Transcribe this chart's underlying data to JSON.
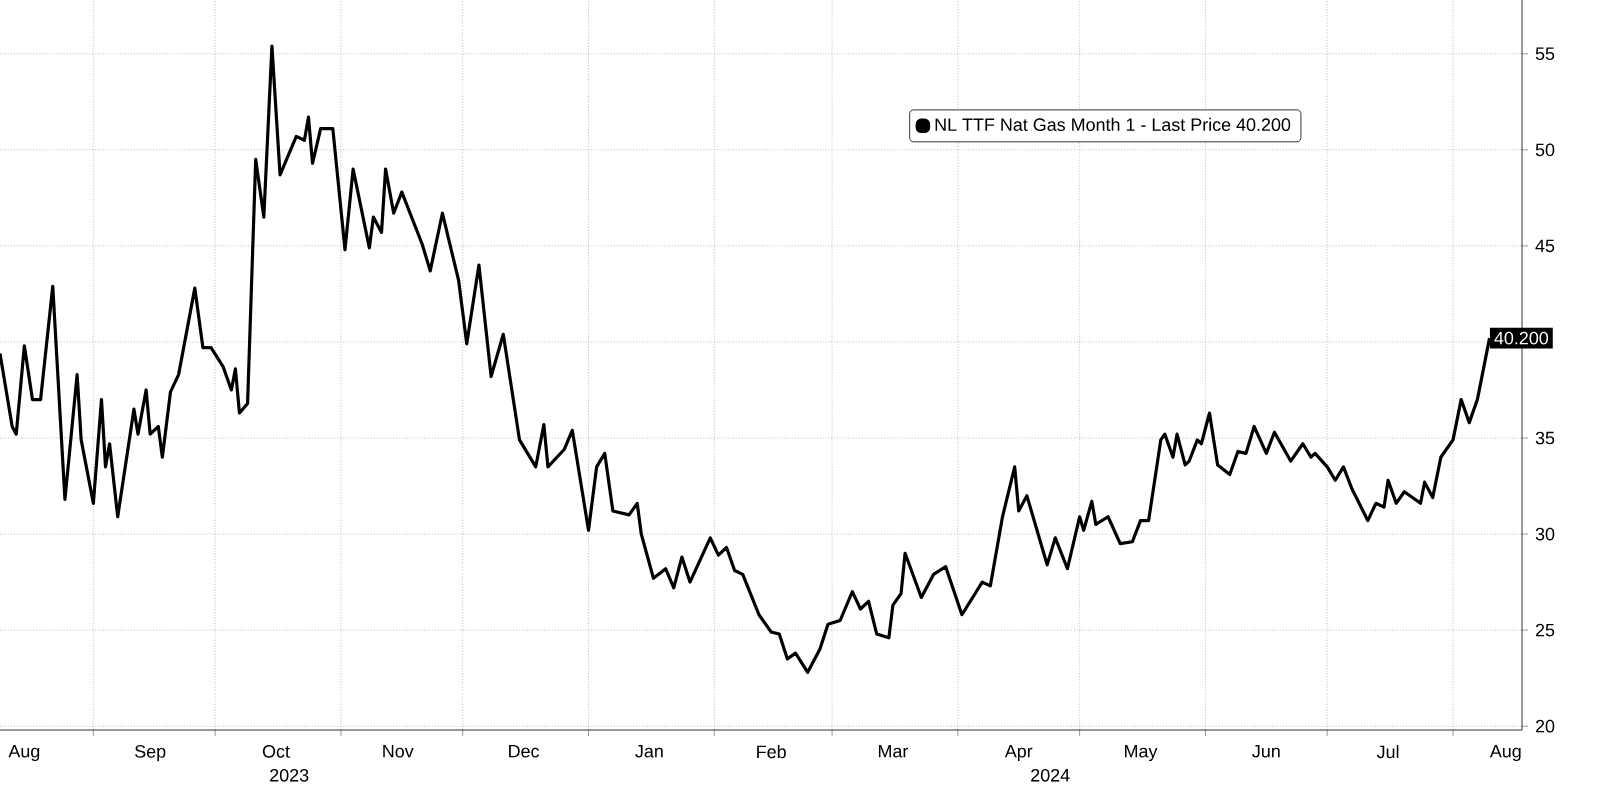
{
  "chart_data": {
    "type": "line",
    "xlim": [
      "2023-08-09",
      "2024-08-18"
    ],
    "ylim": [
      19.8,
      57.8
    ],
    "yticks": [
      20,
      25,
      30,
      35,
      {
        "value": 40,
        "label": null
      },
      45,
      50,
      55
    ],
    "xticks": [
      {
        "value": "2023-08-15",
        "label": "Aug"
      },
      {
        "value": "2023-09-01",
        "label": null
      },
      {
        "value": "2023-09-15",
        "label": "Sep"
      },
      {
        "value": "2023-10-01",
        "label": null
      },
      {
        "value": "2023-10-16",
        "label": "Oct"
      },
      {
        "value": "2023-11-01",
        "label": null
      },
      {
        "value": "2023-11-15",
        "label": "Nov"
      },
      {
        "value": "2023-12-01",
        "label": null
      },
      {
        "value": "2023-12-16",
        "label": "Dec"
      },
      {
        "value": "2024-01-01",
        "label": null
      },
      {
        "value": "2024-01-16",
        "label": "Jan"
      },
      {
        "value": "2024-02-01",
        "label": null
      },
      {
        "value": "2024-02-15",
        "label": "Feb"
      },
      {
        "value": "2024-03-01",
        "label": null
      },
      {
        "value": "2024-03-16",
        "label": "Mar"
      },
      {
        "value": "2024-04-01",
        "label": null
      },
      {
        "value": "2024-04-16",
        "label": "Apr"
      },
      {
        "value": "2024-05-01",
        "label": null
      },
      {
        "value": "2024-05-16",
        "label": "May"
      },
      {
        "value": "2024-06-01",
        "label": null
      },
      {
        "value": "2024-06-16",
        "label": "Jun"
      },
      {
        "value": "2024-07-01",
        "label": null
      },
      {
        "value": "2024-07-16",
        "label": "Jul"
      },
      {
        "value": "2024-08-01",
        "label": null
      },
      {
        "value": "2024-08-14",
        "label": "Aug"
      }
    ],
    "grid": true,
    "legend": "top right",
    "marker": "none",
    "line_style": "solid",
    "annotations": [
      "2023",
      "2024"
    ],
    "series": [
      {
        "name": "NL TTF Nat Gas Month 1 - Last Price 40.200",
        "color": "#000000",
        "x": [
          "2023-08-09",
          "2023-08-12",
          "2023-08-13",
          "2023-08-15",
          "2023-08-17",
          "2023-08-19",
          "2023-08-22",
          "2023-08-25",
          "2023-08-28",
          "2023-08-29",
          "2023-09-01",
          "2023-09-03",
          "2023-09-04",
          "2023-09-05",
          "2023-09-07",
          "2023-09-11",
          "2023-09-12",
          "2023-09-14",
          "2023-09-15",
          "2023-09-17",
          "2023-09-18",
          "2023-09-20",
          "2023-09-22",
          "2023-09-26",
          "2023-09-28",
          "2023-09-30",
          "2023-10-03",
          "2023-10-05",
          "2023-10-06",
          "2023-10-07",
          "2023-10-09",
          "2023-10-11",
          "2023-10-13",
          "2023-10-15",
          "2023-10-17",
          "2023-10-21",
          "2023-10-23",
          "2023-10-24",
          "2023-10-25",
          "2023-10-27",
          "2023-10-30",
          "2023-11-02",
          "2023-11-04",
          "2023-11-08",
          "2023-11-09",
          "2023-11-11",
          "2023-11-12",
          "2023-11-14",
          "2023-11-16",
          "2023-11-21",
          "2023-11-23",
          "2023-11-26",
          "2023-11-30",
          "2023-12-02",
          "2023-12-05",
          "2023-12-08",
          "2023-12-11",
          "2023-12-15",
          "2023-12-19",
          "2023-12-21",
          "2023-12-22",
          "2023-12-26",
          "2023-12-28",
          "2024-01-01",
          "2024-01-03",
          "2024-01-05",
          "2024-01-07",
          "2024-01-11",
          "2024-01-13",
          "2024-01-14",
          "2024-01-17",
          "2024-01-20",
          "2024-01-22",
          "2024-01-24",
          "2024-01-26",
          "2024-01-31",
          "2024-02-02",
          "2024-02-04",
          "2024-02-06",
          "2024-02-08",
          "2024-02-12",
          "2024-02-15",
          "2024-02-17",
          "2024-02-19",
          "2024-02-21",
          "2024-02-24",
          "2024-02-27",
          "2024-02-29",
          "2024-03-03",
          "2024-03-06",
          "2024-03-08",
          "2024-03-10",
          "2024-03-12",
          "2024-03-15",
          "2024-03-16",
          "2024-03-18",
          "2024-03-19",
          "2024-03-23",
          "2024-03-26",
          "2024-03-29",
          "2024-04-02",
          "2024-04-07",
          "2024-04-09",
          "2024-04-12",
          "2024-04-15",
          "2024-04-16",
          "2024-04-18",
          "2024-04-23",
          "2024-04-25",
          "2024-04-28",
          "2024-05-01",
          "2024-05-02",
          "2024-05-04",
          "2024-05-05",
          "2024-05-08",
          "2024-05-11",
          "2024-05-14",
          "2024-05-16",
          "2024-05-18",
          "2024-05-21",
          "2024-05-22",
          "2024-05-24",
          "2024-05-25",
          "2024-05-27",
          "2024-05-28",
          "2024-05-30",
          "2024-05-31",
          "2024-06-02",
          "2024-06-04",
          "2024-06-07",
          "2024-06-09",
          "2024-06-11",
          "2024-06-13",
          "2024-06-16",
          "2024-06-18",
          "2024-06-22",
          "2024-06-25",
          "2024-06-27",
          "2024-06-28",
          "2024-07-01",
          "2024-07-03",
          "2024-07-05",
          "2024-07-07",
          "2024-07-11",
          "2024-07-13",
          "2024-07-15",
          "2024-07-16",
          "2024-07-18",
          "2024-07-20",
          "2024-07-24",
          "2024-07-25",
          "2024-07-27",
          "2024-07-29",
          "2024-08-01",
          "2024-08-03",
          "2024-08-05",
          "2024-08-07",
          "2024-08-10"
        ],
        "values": [
          39.4,
          35.6,
          35.2,
          39.8,
          37.0,
          37.0,
          42.9,
          31.8,
          38.3,
          34.9,
          31.6,
          37.0,
          33.5,
          34.7,
          30.9,
          36.5,
          35.2,
          37.5,
          35.2,
          35.6,
          34.0,
          37.4,
          38.3,
          42.8,
          39.7,
          39.7,
          38.7,
          37.5,
          38.6,
          36.3,
          36.8,
          49.5,
          46.5,
          55.4,
          48.7,
          50.7,
          50.5,
          51.7,
          49.3,
          51.1,
          51.1,
          44.8,
          49.0,
          44.9,
          46.5,
          45.7,
          49.0,
          46.7,
          47.8,
          45.1,
          43.7,
          46.7,
          43.2,
          39.9,
          44.0,
          38.2,
          40.4,
          34.9,
          33.5,
          35.7,
          33.5,
          34.4,
          35.4,
          30.2,
          33.5,
          34.2,
          31.2,
          31.0,
          31.6,
          30.0,
          27.7,
          28.2,
          27.2,
          28.8,
          27.5,
          29.8,
          28.9,
          29.3,
          28.1,
          27.9,
          25.8,
          24.9,
          24.8,
          23.5,
          23.8,
          22.8,
          24.0,
          25.3,
          25.5,
          27.0,
          26.1,
          26.5,
          24.8,
          24.6,
          26.3,
          26.9,
          29.0,
          26.7,
          27.9,
          28.3,
          25.8,
          27.5,
          27.3,
          30.9,
          33.5,
          31.2,
          32.0,
          28.4,
          29.8,
          28.2,
          30.9,
          30.2,
          31.7,
          30.5,
          30.9,
          29.5,
          29.6,
          30.7,
          30.7,
          34.9,
          35.2,
          34.0,
          35.2,
          33.6,
          33.8,
          34.9,
          34.7,
          36.3,
          33.6,
          33.1,
          34.3,
          34.2,
          35.6,
          34.2,
          35.3,
          33.8,
          34.7,
          34.0,
          34.2,
          33.5,
          32.8,
          33.5,
          32.4,
          30.7,
          31.6,
          31.4,
          32.8,
          31.6,
          32.2,
          31.6,
          32.7,
          31.9,
          34.0,
          34.9,
          37.0,
          35.8,
          37.0,
          40.2
        ],
        "value_labels": [
          null,
          null,
          null,
          null,
          null,
          null,
          null,
          null,
          null,
          null,
          null,
          null,
          null,
          null,
          null,
          null,
          null,
          null,
          null,
          null,
          null,
          null,
          null,
          null,
          null,
          null,
          null,
          null,
          null,
          null,
          null,
          null,
          null,
          null,
          null,
          null,
          null,
          null,
          null,
          null,
          null,
          null,
          null,
          null,
          null,
          null,
          null,
          null,
          null,
          null,
          null,
          null,
          null,
          null,
          null,
          null,
          null,
          null,
          null,
          null,
          null,
          null,
          null,
          null,
          null,
          null,
          null,
          null,
          null,
          null,
          null,
          null,
          null,
          null,
          null,
          null,
          null,
          null,
          null,
          null,
          null,
          null,
          null,
          null,
          null,
          null,
          null,
          null,
          null,
          null,
          null,
          null,
          null,
          null,
          null,
          null,
          null,
          null,
          null,
          null,
          null,
          null,
          null,
          null,
          null,
          null,
          null,
          null,
          null,
          null,
          null,
          null,
          null,
          null,
          null,
          null,
          null,
          null,
          null,
          null,
          null,
          null,
          null,
          null,
          null,
          null,
          null,
          null,
          null,
          null,
          null,
          null,
          null,
          null,
          null,
          null,
          null,
          null,
          null,
          null,
          null,
          null,
          null,
          null,
          null,
          null,
          null,
          null,
          null,
          null,
          null,
          null,
          null,
          null,
          null,
          null,
          null,
          "40.200"
        ]
      }
    ]
  }
}
